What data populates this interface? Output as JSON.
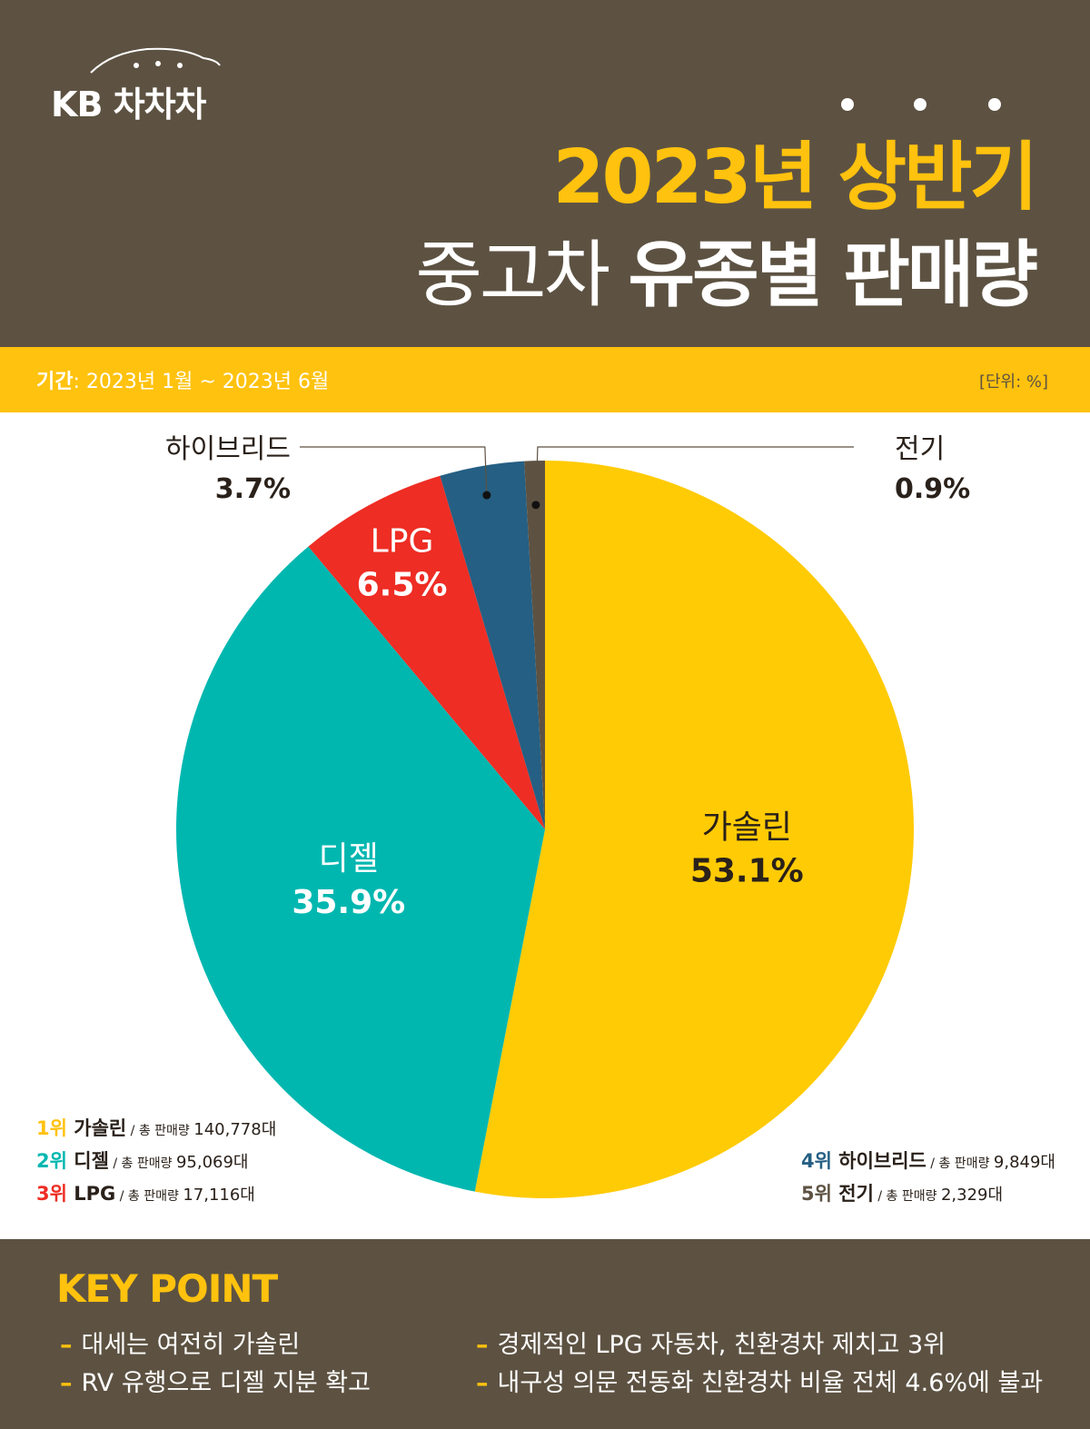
{
  "brand": {
    "logo_text": "KB 차차차"
  },
  "header": {
    "title_line1": "2023년 상반기",
    "title_line2_light": "중고차 ",
    "title_line2_bold": "유종별 판매량"
  },
  "band": {
    "period_label": "기간",
    "period_value": ": 2023년 1월 ~ 2023년 6월",
    "unit": "[단위: %]"
  },
  "chart_data": {
    "type": "pie",
    "unit": "%",
    "start": "12 o'clock, clockwise",
    "categories": [
      "가솔린",
      "디젤",
      "LPG",
      "하이브리드",
      "전기"
    ],
    "values": [
      53.1,
      35.9,
      6.5,
      3.7,
      0.9
    ],
    "labels": [
      "53.1%",
      "35.9%",
      "6.5%",
      "3.7%",
      "0.9%"
    ],
    "colors": [
      "#ffcb05",
      "#00b7b0",
      "#ee2d24",
      "#255f83",
      "#5d5242"
    ]
  },
  "ranks": [
    {
      "rank": "1위",
      "name": "가솔린",
      "total_label": " / 총 판매량 ",
      "count": "140,778대",
      "color": "#ffc20e"
    },
    {
      "rank": "2위",
      "name": "디젤",
      "total_label": " / 총 판매량 ",
      "count": "95,069대",
      "color": "#00b7b0"
    },
    {
      "rank": "3위",
      "name": "LPG",
      "total_label": " / 총 판매량 ",
      "count": "17,116대",
      "color": "#ee2d24"
    },
    {
      "rank": "4위",
      "name": "하이브리드",
      "total_label": " / 총 판매량 ",
      "count": "9,849대",
      "color": "#255f83"
    },
    {
      "rank": "5위",
      "name": "전기",
      "total_label": " / 총 판매량 ",
      "count": "2,329대",
      "color": "#5d5242"
    }
  ],
  "key_point": {
    "title": "KEY POINT",
    "points": [
      "대세는 여전히 가솔린",
      "RV 유행으로 디젤 지분 확고",
      "경제적인 LPG 자동차, 친환경차 제치고 3위",
      "내구성 의문 전동화 친환경차 비율 전체 4.6%에 불과"
    ]
  }
}
